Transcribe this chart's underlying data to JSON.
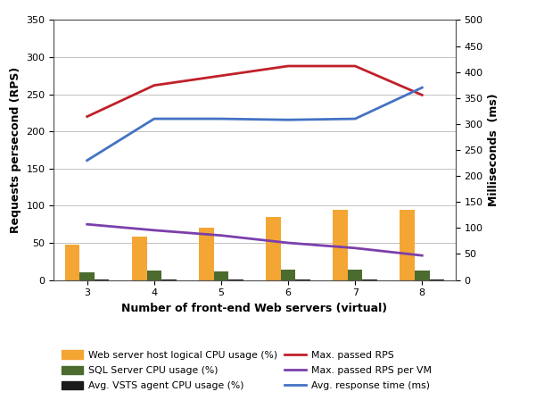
{
  "x": [
    3,
    4,
    5,
    6,
    7,
    8
  ],
  "web_cpu": [
    47,
    59,
    70,
    85,
    95,
    94
  ],
  "sql_cpu": [
    10,
    13,
    12,
    14,
    14,
    13
  ],
  "vsts_cpu": [
    1,
    1,
    1,
    1,
    1,
    1
  ],
  "max_rps": [
    220,
    262,
    275,
    288,
    288,
    249
  ],
  "rps_per_vm": [
    75,
    67,
    60,
    50,
    43,
    33
  ],
  "avg_response_ms": [
    230,
    310,
    310,
    308,
    310,
    370
  ],
  "left_ylim": [
    0,
    350
  ],
  "right_ylim": [
    0,
    500
  ],
  "left_yticks": [
    0,
    50,
    100,
    150,
    200,
    250,
    300,
    350
  ],
  "right_yticks": [
    0,
    50,
    100,
    150,
    200,
    250,
    300,
    350,
    400,
    450,
    500
  ],
  "xlabel": "Number of front-end Web servers (virtual)",
  "ylabel_left": "Requests persecond (RPS)",
  "ylabel_right": "Milliseconds  (ms)",
  "color_web_cpu": "#F4A634",
  "color_sql_cpu": "#4B6B2F",
  "color_vsts_cpu": "#1A1A1A",
  "color_max_rps": "#C0202A",
  "color_rps_per_vm": "#7B3FAB",
  "color_avg_response": "#4472C4",
  "bar_width": 0.22,
  "legend_labels": [
    "Web server host logical CPU usage (%)",
    "SQL Server CPU usage (%)",
    "Avg. VSTS agent CPU usage (%)",
    "Max. passed RPS",
    "Max. passed RPS per VM",
    "Avg. response time (ms)"
  ],
  "background_color": "#FFFFFF",
  "grid_color": "#AAAAAA"
}
